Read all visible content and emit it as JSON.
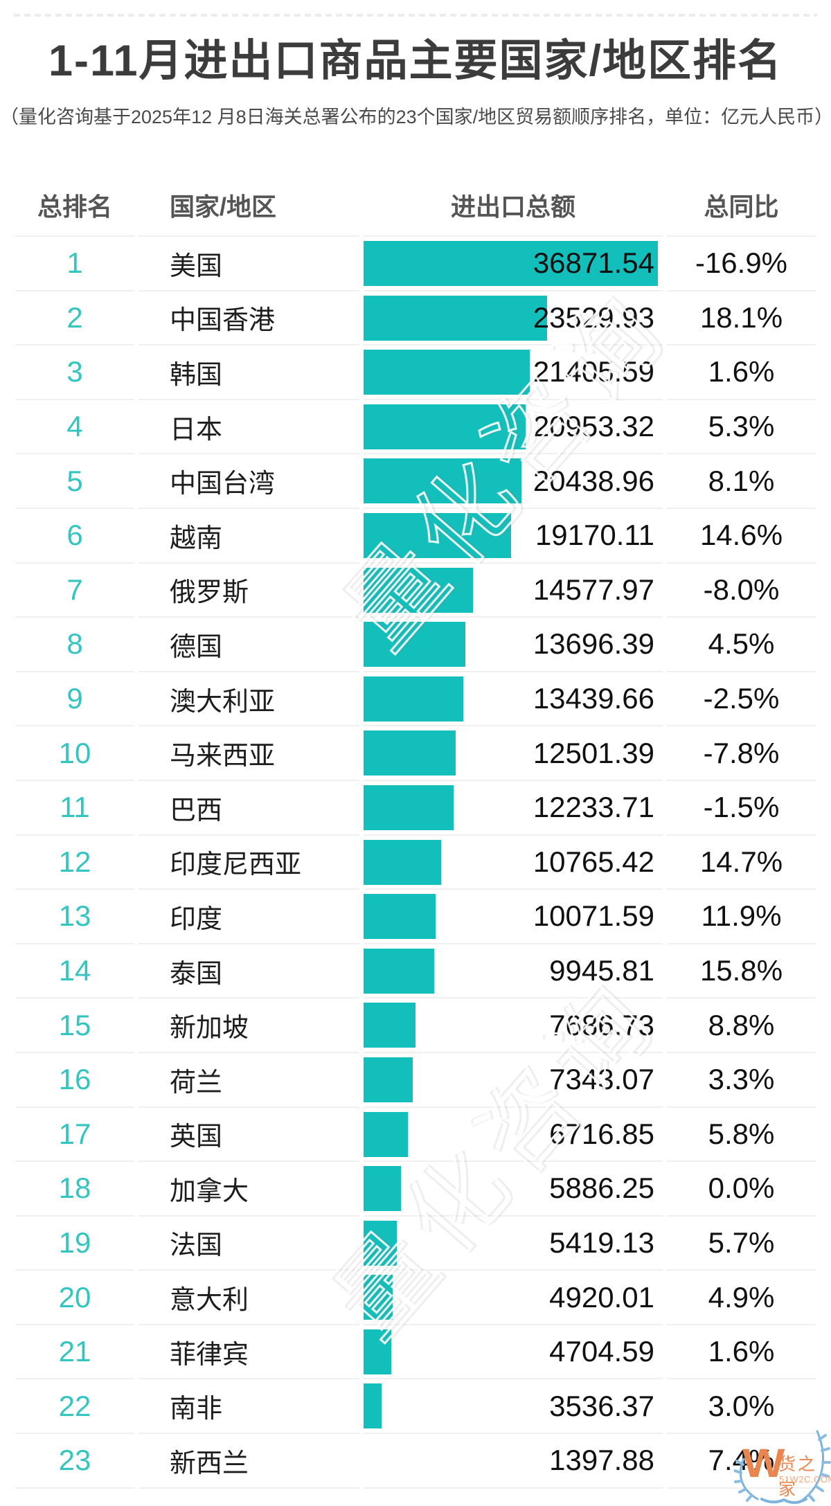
{
  "page": {
    "title": "1-11月进出口商品主要国家/地区排名",
    "subtitle": "（量化咨询基于2025年12 月8日海关总署公布的23个国家/地区贸易额顺序排名，单位：亿元人民币）"
  },
  "table": {
    "headers": [
      "总排名",
      "国家/地区",
      "进出口总额",
      "总同比"
    ]
  },
  "chart_data": {
    "type": "bar",
    "title": "1-11月进出口商品主要国家/地区排名",
    "unit": "亿元人民币",
    "orientation": "horizontal",
    "bar_axis": {
      "min": 1397.88,
      "max": 36871.54
    },
    "columns": [
      "rank",
      "region",
      "total",
      "yoy"
    ],
    "rows": [
      {
        "rank": "1",
        "region": "美国",
        "total": "36871.54",
        "yoy": "-16.9%"
      },
      {
        "rank": "2",
        "region": "中国香港",
        "total": "23529.93",
        "yoy": "18.1%"
      },
      {
        "rank": "3",
        "region": "韩国",
        "total": "21405.59",
        "yoy": "1.6%"
      },
      {
        "rank": "4",
        "region": "日本",
        "total": "20953.32",
        "yoy": "5.3%"
      },
      {
        "rank": "5",
        "region": "中国台湾",
        "total": "20438.96",
        "yoy": "8.1%"
      },
      {
        "rank": "6",
        "region": "越南",
        "total": "19170.11",
        "yoy": "14.6%"
      },
      {
        "rank": "7",
        "region": "俄罗斯",
        "total": "14577.97",
        "yoy": "-8.0%"
      },
      {
        "rank": "8",
        "region": "德国",
        "total": "13696.39",
        "yoy": "4.5%"
      },
      {
        "rank": "9",
        "region": "澳大利亚",
        "total": "13439.66",
        "yoy": "-2.5%"
      },
      {
        "rank": "10",
        "region": "马来西亚",
        "total": "12501.39",
        "yoy": "-7.8%"
      },
      {
        "rank": "11",
        "region": "巴西",
        "total": "12233.71",
        "yoy": "-1.5%"
      },
      {
        "rank": "12",
        "region": "印度尼西亚",
        "total": "10765.42",
        "yoy": "14.7%"
      },
      {
        "rank": "13",
        "region": "印度",
        "total": "10071.59",
        "yoy": "11.9%"
      },
      {
        "rank": "14",
        "region": "泰国",
        "total": "9945.81",
        "yoy": "15.8%"
      },
      {
        "rank": "15",
        "region": "新加坡",
        "total": "7686.73",
        "yoy": "8.8%"
      },
      {
        "rank": "16",
        "region": "荷兰",
        "total": "7343.07",
        "yoy": "3.3%"
      },
      {
        "rank": "17",
        "region": "英国",
        "total": "6716.85",
        "yoy": "5.8%"
      },
      {
        "rank": "18",
        "region": "加拿大",
        "total": "5886.25",
        "yoy": "0.0%"
      },
      {
        "rank": "19",
        "region": "法国",
        "total": "5419.13",
        "yoy": "5.7%"
      },
      {
        "rank": "20",
        "region": "意大利",
        "total": "4920.01",
        "yoy": "4.9%"
      },
      {
        "rank": "21",
        "region": "菲律宾",
        "total": "4704.59",
        "yoy": "1.6%"
      },
      {
        "rank": "22",
        "region": "南非",
        "total": "3536.37",
        "yoy": "3.0%"
      },
      {
        "rank": "23",
        "region": "新西兰",
        "total": "1397.88",
        "yoy": "7.4%"
      }
    ]
  },
  "watermark": {
    "text": "量化咨询"
  },
  "logo": {
    "mark": "W",
    "name": "货之家",
    "domain": "51W2C.COM"
  },
  "colors": {
    "bar": "#12bfbb",
    "rank_text": "#35c5c1",
    "separator": "#f0f0f0",
    "logo_orange": "#e9854e",
    "wreath_blue": "#7db4dd"
  }
}
